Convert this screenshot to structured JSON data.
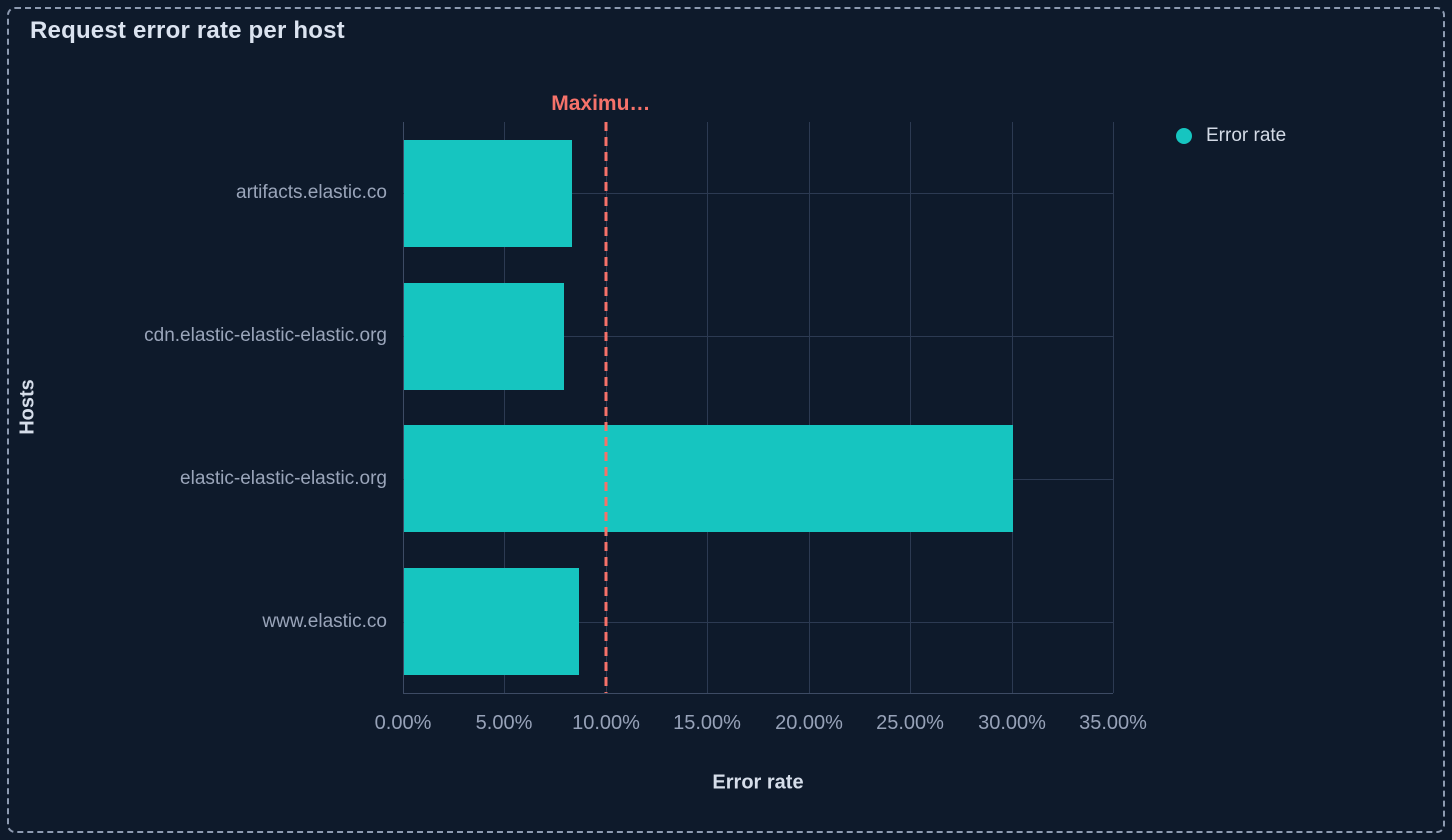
{
  "panel": {
    "title": "Request error rate per host"
  },
  "chart_data": {
    "type": "bar",
    "orientation": "horizontal",
    "title": "Request error rate per host",
    "categories": [
      "artifacts.elastic.co",
      "cdn.elastic-elastic-elastic.org",
      "elastic-elastic-elastic.org",
      "www.elastic.co"
    ],
    "series": [
      {
        "name": "Error rate",
        "values": [
          8.3,
          7.9,
          30.0,
          8.65
        ]
      }
    ],
    "value_unit": "%",
    "xlabel": "Error rate",
    "ylabel": "Hosts",
    "xlim": [
      0,
      35
    ],
    "x_tick_values": [
      0,
      5,
      10,
      15,
      20,
      25,
      30,
      35
    ],
    "x_tick_labels": [
      "0.00%",
      "5.00%",
      "10.00%",
      "15.00%",
      "20.00%",
      "25.00%",
      "30.00%",
      "35.00%"
    ],
    "grid": true,
    "legend": {
      "position": "top-right",
      "items": [
        {
          "label": "Error rate",
          "color": "#16C5C0"
        }
      ]
    },
    "threshold": {
      "value": 10,
      "label": "Maximu…",
      "style": "dashed"
    }
  },
  "colors": {
    "background": "#0E1A2B",
    "panel_border": "#8E9BB1",
    "bar": "#16C5C0",
    "threshold": "#F6726A",
    "grid": "#2C3A52",
    "axis_line": "#3D4B64",
    "tick_text": "#97A2B8",
    "category_text": "#9AA5BA",
    "title_text": "#DBE3F0",
    "legend_text": "#D3DAE6"
  }
}
